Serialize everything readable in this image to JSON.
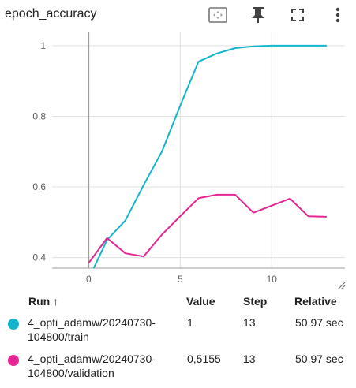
{
  "header": {
    "title": "epoch_accuracy"
  },
  "toolbar": {
    "fit_icon": "fit-domain-icon",
    "pin_icon": "pin-icon",
    "fullscreen_icon": "fullscreen-icon",
    "more_icon": "more-vert-icon"
  },
  "chart_data": {
    "type": "line",
    "title": "",
    "xlabel": "",
    "ylabel": "",
    "xlim": [
      -2,
      14
    ],
    "ylim": [
      0.37,
      1.04
    ],
    "xticks": [
      "0",
      "5",
      "10"
    ],
    "xtick_values": [
      0,
      5,
      10
    ],
    "yticks": [
      "1",
      "0.8",
      "0.6",
      "0.4"
    ],
    "ytick_values": [
      1,
      0.8,
      0.6,
      0.4
    ],
    "grid": true,
    "series": [
      {
        "color": "#12b5cb",
        "x": [
          0,
          1,
          2,
          3,
          4,
          5,
          6,
          7,
          8,
          9,
          10,
          11,
          12,
          13
        ],
        "y": [
          0.34,
          0.45,
          0.505,
          0.605,
          0.7,
          0.83,
          0.955,
          0.978,
          0.993,
          0.998,
          1.0,
          1.0,
          1.0,
          1.0
        ]
      },
      {
        "color": "#e52592",
        "x": [
          0,
          1,
          2,
          3,
          4,
          5,
          6,
          7,
          8,
          9,
          10,
          11,
          12,
          13
        ],
        "y": [
          0.385,
          0.455,
          0.412,
          0.403,
          0.465,
          0.517,
          0.568,
          0.578,
          0.578,
          0.527,
          0.547,
          0.567,
          0.517,
          0.5155
        ]
      }
    ]
  },
  "table": {
    "headers": {
      "run": "Run ↑",
      "value": "Value",
      "step": "Step",
      "relative": "Relative"
    },
    "rows": [
      {
        "color": "#12b5cb",
        "run_line1": "4_opti_adamw/20240730-",
        "run_line2": "104800/train",
        "value": "1",
        "step": "13",
        "relative": "50.97 sec"
      },
      {
        "color": "#e52592",
        "run_line1": "4_opti_adamw/20240730-",
        "run_line2": "104800/validation",
        "value": "0,5155",
        "step": "13",
        "relative": "50.97 sec"
      }
    ]
  }
}
